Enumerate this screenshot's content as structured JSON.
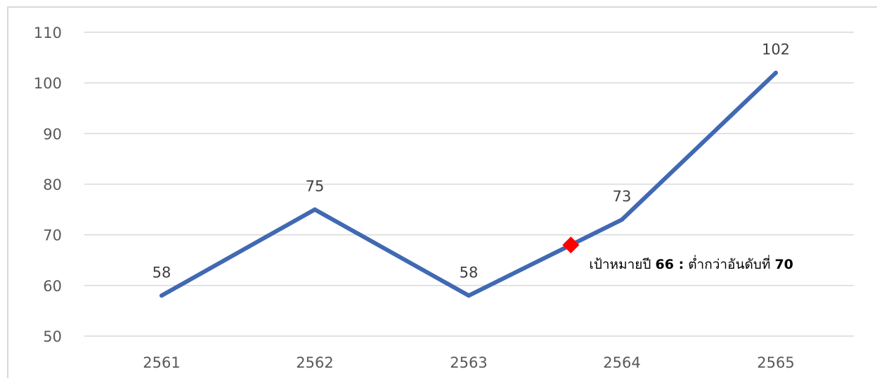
{
  "chart_data": {
    "type": "line",
    "categories": [
      "2561",
      "2562",
      "2563",
      "2564",
      "2565"
    ],
    "series": [
      {
        "values": [
          58,
          75,
          58,
          73,
          102
        ]
      }
    ],
    "data_labels": [
      "58",
      "75",
      "58",
      "73",
      "102"
    ],
    "y_ticks": [
      "50",
      "60",
      "70",
      "80",
      "90",
      "100",
      "110"
    ],
    "ylim": [
      50,
      110
    ],
    "title": "",
    "xlabel": "",
    "ylabel": "",
    "grid": "horizontal",
    "legend": "none",
    "target_marker": {
      "x": "between 2563 and 2564",
      "value": 68,
      "label_prefix": "เป้าหมายปี ",
      "label_year": "66 :",
      "label_middle": " ต่ำกว่าอันดับที่ ",
      "label_rank": "70"
    }
  },
  "colors": {
    "line": "#4169B3",
    "marker": "#FF0000",
    "grid": "#D9D9D9",
    "frame": "#D9D9D9"
  }
}
